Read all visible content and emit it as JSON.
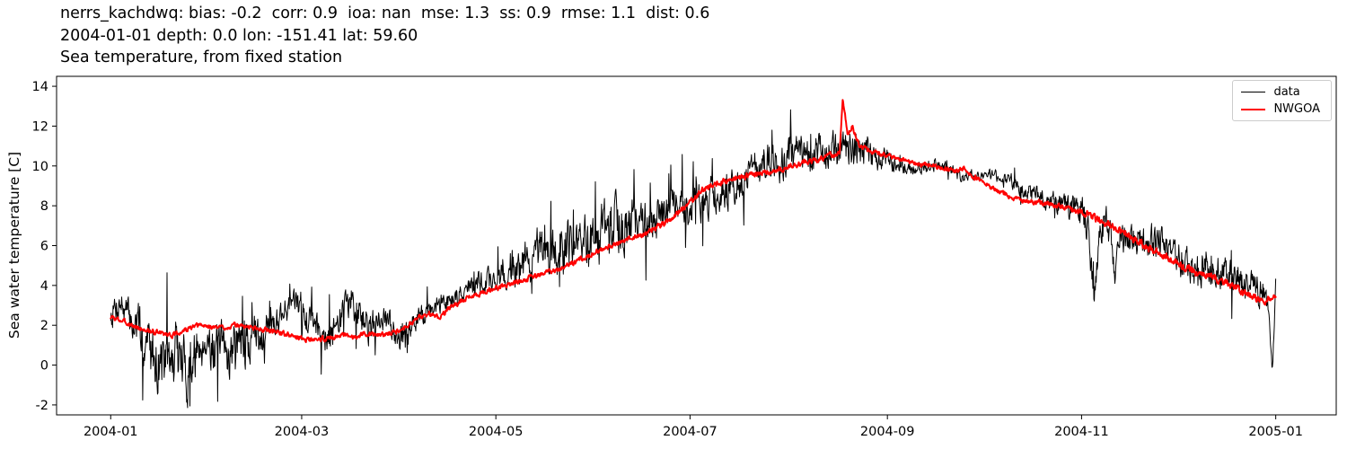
{
  "figure": {
    "title_line1": "nerrs_kachdwq: bias: -0.2  corr: 0.9  ioa: nan  mse: 1.3  ss: 0.9  rmse: 1.1  dist: 0.6",
    "title_line2": "2004-01-01 depth: 0.0 lon: -151.41 lat: 59.60",
    "title_line3": "Sea temperature, from fixed station",
    "ylabel": "Sea water temperature [C]"
  },
  "legend": {
    "items": [
      {
        "label": "data",
        "color": "#000000"
      },
      {
        "label": "NWGOA",
        "color": "#ff0000"
      }
    ]
  },
  "chart_data": {
    "type": "line",
    "title": "Sea temperature, from fixed station",
    "subtitle_lines": [
      "nerrs_kachdwq: bias: -0.2  corr: 0.9  ioa: nan  mse: 1.3  ss: 0.9  rmse: 1.1  dist: 0.6",
      "2004-01-01 depth: 0.0 lon: -151.41 lat: 59.60"
    ],
    "stats": {
      "bias": -0.2,
      "corr": 0.9,
      "ioa": "nan",
      "mse": 1.3,
      "ss": 0.9,
      "rmse": 1.1,
      "dist": 0.6
    },
    "station": {
      "name": "nerrs_kachdwq",
      "date": "2004-01-01",
      "depth": 0.0,
      "lon": -151.41,
      "lat": 59.6
    },
    "xlabel": "",
    "ylabel": "Sea water temperature [C]",
    "ylim": [
      -2.5,
      14.5
    ],
    "xlim_days": [
      -17,
      385
    ],
    "x_epoch": "2004-01-01",
    "grid": false,
    "legend_position": "upper right",
    "yticks": [
      -2,
      0,
      2,
      4,
      6,
      8,
      10,
      12,
      14
    ],
    "xticks": [
      {
        "day": 0,
        "label": "2004-01"
      },
      {
        "day": 60,
        "label": "2004-03"
      },
      {
        "day": 121,
        "label": "2004-05"
      },
      {
        "day": 182,
        "label": "2004-07"
      },
      {
        "day": 244,
        "label": "2004-09"
      },
      {
        "day": 305,
        "label": "2004-11"
      },
      {
        "day": 366,
        "label": "2005-01"
      }
    ],
    "series": [
      {
        "name": "data",
        "color": "#000000",
        "width": 1.0,
        "noise_seed": 7,
        "spike_prob": 0.045,
        "points": [
          [
            0,
            2.6,
            0.8
          ],
          [
            3,
            3.2,
            0.8
          ],
          [
            6,
            2.3,
            0.9
          ],
          [
            9,
            1.7,
            1.1
          ],
          [
            12,
            0.9,
            1.4
          ],
          [
            15,
            0.3,
            1.5
          ],
          [
            18,
            -0.2,
            1.4
          ],
          [
            21,
            0.5,
            1.6
          ],
          [
            24,
            -0.4,
            1.4
          ],
          [
            27,
            0.7,
            1.3
          ],
          [
            30,
            1.4,
            1.0
          ],
          [
            33,
            0.6,
            1.3
          ],
          [
            36,
            0.5,
            1.4
          ],
          [
            39,
            1.2,
            1.2
          ],
          [
            42,
            0.9,
            1.2
          ],
          [
            45,
            1.4,
            1.0
          ],
          [
            48,
            1.8,
            0.9
          ],
          [
            51,
            2.1,
            0.8
          ],
          [
            54,
            2.7,
            0.7
          ],
          [
            57,
            3.1,
            0.6
          ],
          [
            60,
            2.9,
            0.7
          ],
          [
            63,
            2.4,
            0.8
          ],
          [
            66,
            2.0,
            0.8
          ],
          [
            69,
            1.3,
            0.9
          ],
          [
            72,
            2.3,
            0.9
          ],
          [
            75,
            3.4,
            0.8
          ],
          [
            78,
            2.5,
            0.9
          ],
          [
            81,
            1.9,
            0.8
          ],
          [
            84,
            2.2,
            0.7
          ],
          [
            87,
            2.1,
            0.7
          ],
          [
            90,
            1.7,
            0.8
          ],
          [
            93,
            1.3,
            0.8
          ],
          [
            96,
            2.2,
            0.6
          ],
          [
            100,
            2.7,
            0.5
          ],
          [
            104,
            3.1,
            0.5
          ],
          [
            108,
            3.4,
            0.5
          ],
          [
            112,
            3.8,
            0.5
          ],
          [
            116,
            4.1,
            0.6
          ],
          [
            120,
            4.4,
            0.7
          ],
          [
            124,
            4.7,
            0.9
          ],
          [
            128,
            5.0,
            1.0
          ],
          [
            132,
            5.2,
            1.0
          ],
          [
            136,
            5.5,
            1.1
          ],
          [
            140,
            5.8,
            1.2
          ],
          [
            144,
            6.0,
            1.2
          ],
          [
            148,
            6.2,
            1.3
          ],
          [
            152,
            6.4,
            1.3
          ],
          [
            156,
            6.7,
            1.4
          ],
          [
            160,
            6.9,
            1.5
          ],
          [
            164,
            7.1,
            1.3
          ],
          [
            168,
            7.2,
            1.1
          ],
          [
            172,
            7.4,
            1.1
          ],
          [
            176,
            7.7,
            1.0
          ],
          [
            180,
            8.0,
            1.0
          ],
          [
            184,
            8.2,
            1.0
          ],
          [
            188,
            8.4,
            0.9
          ],
          [
            192,
            8.7,
            0.9
          ],
          [
            196,
            9.1,
            0.9
          ],
          [
            200,
            9.6,
            0.9
          ],
          [
            204,
            10.0,
            1.0
          ],
          [
            208,
            10.2,
            1.0
          ],
          [
            212,
            10.4,
            0.9
          ],
          [
            216,
            10.4,
            0.9
          ],
          [
            220,
            10.4,
            0.9
          ],
          [
            224,
            10.6,
            0.9
          ],
          [
            228,
            10.8,
            0.9
          ],
          [
            232,
            10.9,
            0.9
          ],
          [
            236,
            10.7,
            0.9
          ],
          [
            240,
            10.5,
            0.7
          ],
          [
            244,
            10.3,
            0.5
          ],
          [
            248,
            10.0,
            0.4
          ],
          [
            252,
            9.8,
            0.3
          ],
          [
            256,
            9.9,
            0.3
          ],
          [
            260,
            10.1,
            0.25
          ],
          [
            264,
            9.7,
            0.3
          ],
          [
            268,
            9.4,
            0.3
          ],
          [
            272,
            9.5,
            0.25
          ],
          [
            276,
            9.6,
            0.25
          ],
          [
            280,
            9.4,
            0.3
          ],
          [
            284,
            9.1,
            0.3
          ],
          [
            288,
            8.7,
            0.4
          ],
          [
            292,
            8.4,
            0.45
          ],
          [
            296,
            8.2,
            0.5
          ],
          [
            300,
            8.0,
            0.6
          ],
          [
            304,
            7.8,
            0.8
          ],
          [
            307,
            7.3,
            1.0
          ],
          [
            309,
            3.2,
            0.6
          ],
          [
            311,
            7.0,
            1.0
          ],
          [
            314,
            6.8,
            0.8
          ],
          [
            315.5,
            4.2,
            0.5
          ],
          [
            317,
            6.6,
            0.8
          ],
          [
            320,
            6.4,
            0.8
          ],
          [
            324,
            6.2,
            0.8
          ],
          [
            328,
            6.1,
            0.8
          ],
          [
            332,
            5.9,
            0.7
          ],
          [
            336,
            5.3,
            0.8
          ],
          [
            340,
            4.7,
            0.8
          ],
          [
            344,
            5.1,
            0.9
          ],
          [
            348,
            4.7,
            0.9
          ],
          [
            352,
            4.4,
            0.9
          ],
          [
            356,
            4.1,
            0.8
          ],
          [
            360,
            3.9,
            0.8
          ],
          [
            363,
            3.5,
            1.0
          ],
          [
            365,
            -0.2,
            0.4
          ],
          [
            366,
            4.2,
            0.2
          ]
        ]
      },
      {
        "name": "NWGOA",
        "color": "#ff0000",
        "width": 2.0,
        "noise_seed": 3,
        "spike_prob": 0.0,
        "points": [
          [
            0,
            2.4,
            0.12
          ],
          [
            4,
            2.2,
            0.12
          ],
          [
            8,
            1.9,
            0.12
          ],
          [
            12,
            1.7,
            0.12
          ],
          [
            16,
            1.6,
            0.12
          ],
          [
            20,
            1.5,
            0.12
          ],
          [
            24,
            1.8,
            0.12
          ],
          [
            28,
            2.0,
            0.12
          ],
          [
            32,
            1.9,
            0.12
          ],
          [
            36,
            1.9,
            0.12
          ],
          [
            40,
            2.0,
            0.12
          ],
          [
            44,
            1.9,
            0.12
          ],
          [
            48,
            1.8,
            0.12
          ],
          [
            52,
            1.7,
            0.12
          ],
          [
            56,
            1.5,
            0.12
          ],
          [
            60,
            1.35,
            0.12
          ],
          [
            64,
            1.25,
            0.12
          ],
          [
            68,
            1.35,
            0.12
          ],
          [
            72,
            1.5,
            0.12
          ],
          [
            76,
            1.4,
            0.12
          ],
          [
            80,
            1.6,
            0.12
          ],
          [
            84,
            1.5,
            0.12
          ],
          [
            88,
            1.6,
            0.12
          ],
          [
            92,
            1.9,
            0.12
          ],
          [
            96,
            2.3,
            0.12
          ],
          [
            100,
            2.6,
            0.12
          ],
          [
            103,
            2.4,
            0.12
          ],
          [
            106,
            2.8,
            0.12
          ],
          [
            110,
            3.2,
            0.12
          ],
          [
            114,
            3.5,
            0.12
          ],
          [
            118,
            3.7,
            0.12
          ],
          [
            122,
            3.9,
            0.12
          ],
          [
            126,
            4.1,
            0.12
          ],
          [
            130,
            4.3,
            0.12
          ],
          [
            134,
            4.5,
            0.12
          ],
          [
            138,
            4.7,
            0.12
          ],
          [
            142,
            4.9,
            0.12
          ],
          [
            146,
            5.2,
            0.12
          ],
          [
            150,
            5.5,
            0.12
          ],
          [
            154,
            5.8,
            0.12
          ],
          [
            158,
            6.0,
            0.12
          ],
          [
            162,
            6.3,
            0.12
          ],
          [
            166,
            6.5,
            0.12
          ],
          [
            170,
            6.8,
            0.14
          ],
          [
            174,
            7.1,
            0.14
          ],
          [
            178,
            7.6,
            0.14
          ],
          [
            182,
            8.2,
            0.14
          ],
          [
            186,
            8.8,
            0.14
          ],
          [
            190,
            9.1,
            0.14
          ],
          [
            194,
            9.3,
            0.14
          ],
          [
            198,
            9.4,
            0.14
          ],
          [
            202,
            9.6,
            0.14
          ],
          [
            206,
            9.7,
            0.14
          ],
          [
            210,
            9.8,
            0.14
          ],
          [
            214,
            10.0,
            0.14
          ],
          [
            218,
            10.2,
            0.14
          ],
          [
            222,
            10.3,
            0.14
          ],
          [
            226,
            10.5,
            0.14
          ],
          [
            229,
            10.7,
            0.1
          ],
          [
            230,
            13.4,
            0.1
          ],
          [
            231.5,
            11.6,
            0.1
          ],
          [
            233,
            12.0,
            0.1
          ],
          [
            235,
            11.1,
            0.12
          ],
          [
            238,
            10.8,
            0.12
          ],
          [
            242,
            10.6,
            0.12
          ],
          [
            246,
            10.4,
            0.12
          ],
          [
            250,
            10.2,
            0.12
          ],
          [
            254,
            10.1,
            0.12
          ],
          [
            258,
            10.0,
            0.12
          ],
          [
            262,
            9.9,
            0.12
          ],
          [
            265,
            9.7,
            0.12
          ],
          [
            268,
            9.9,
            0.12
          ],
          [
            271,
            9.5,
            0.12
          ],
          [
            274,
            9.2,
            0.12
          ],
          [
            278,
            8.8,
            0.12
          ],
          [
            282,
            8.5,
            0.12
          ],
          [
            286,
            8.3,
            0.12
          ],
          [
            290,
            8.2,
            0.12
          ],
          [
            294,
            8.1,
            0.12
          ],
          [
            298,
            8.0,
            0.14
          ],
          [
            302,
            7.8,
            0.16
          ],
          [
            306,
            7.6,
            0.18
          ],
          [
            310,
            7.3,
            0.18
          ],
          [
            314,
            7.0,
            0.18
          ],
          [
            318,
            6.6,
            0.18
          ],
          [
            322,
            6.3,
            0.18
          ],
          [
            326,
            5.9,
            0.18
          ],
          [
            330,
            5.6,
            0.18
          ],
          [
            334,
            5.2,
            0.18
          ],
          [
            338,
            4.9,
            0.18
          ],
          [
            342,
            4.6,
            0.18
          ],
          [
            346,
            4.4,
            0.18
          ],
          [
            350,
            4.2,
            0.18
          ],
          [
            354,
            3.8,
            0.18
          ],
          [
            358,
            3.5,
            0.18
          ],
          [
            362,
            3.2,
            0.18
          ],
          [
            366,
            3.4,
            0.14
          ]
        ]
      }
    ]
  }
}
